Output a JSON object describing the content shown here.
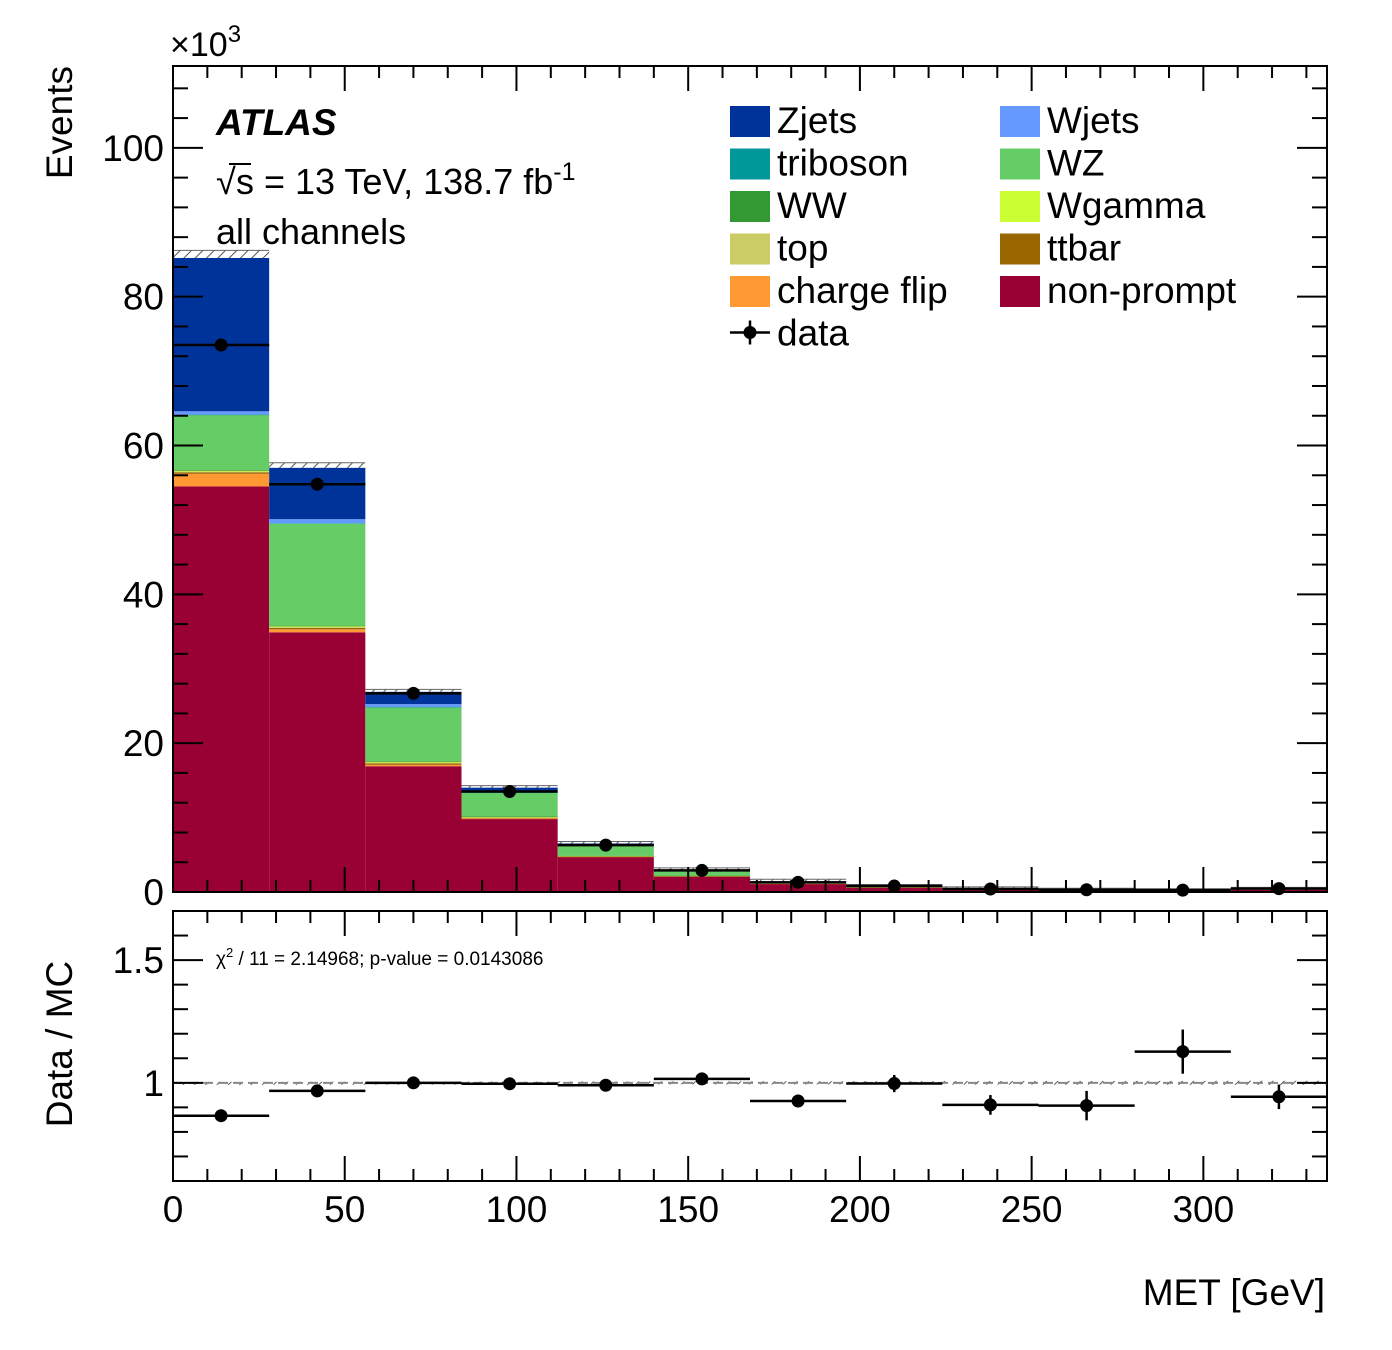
{
  "chart_data": [
    {
      "type": "bar",
      "stacked": true,
      "experiment": "ATLAS",
      "energy_prefix": "s = 13 TeV, 138.7 fb",
      "energy_superscript": "-1",
      "channel": "all channels",
      "ylabel": "Events",
      "yscale_prefix": "×10",
      "yscale_exp": "3",
      "ylim": [
        0,
        111
      ],
      "yticks": [
        0,
        20,
        40,
        60,
        80,
        100
      ],
      "xlim": [
        0,
        336
      ],
      "bin_edges": [
        0,
        28,
        56,
        84,
        112,
        140,
        168,
        196,
        224,
        252,
        280,
        308,
        336
      ],
      "series": [
        {
          "name": "non-prompt",
          "color": "#990033",
          "values": [
            54.5,
            34.9,
            16.9,
            9.8,
            4.7,
            2.1,
            1.1,
            0.6,
            0.35,
            0.2,
            0.15,
            0.3
          ]
        },
        {
          "name": "charge flip",
          "color": "#ff9933",
          "values": [
            1.7,
            0.4,
            0.2,
            0.1,
            0.05,
            0.03,
            0.02,
            0.01,
            0.0,
            0.0,
            0.0,
            0.0
          ]
        },
        {
          "name": "ttbar",
          "color": "#996600",
          "values": [
            0.2,
            0.2,
            0.2,
            0.1,
            0.05,
            0.03,
            0.02,
            0.01,
            0.0,
            0.0,
            0.0,
            0.0
          ]
        },
        {
          "name": "top",
          "color": "#cccc66",
          "values": [
            0.1,
            0.1,
            0.1,
            0.05,
            0.03,
            0.02,
            0.01,
            0.0,
            0.0,
            0.0,
            0.0,
            0.0
          ]
        },
        {
          "name": "Wgamma",
          "color": "#ccff33",
          "values": [
            0.1,
            0.1,
            0.1,
            0.05,
            0.02,
            0.01,
            0.0,
            0.0,
            0.0,
            0.0,
            0.0,
            0.0
          ]
        },
        {
          "name": "WW",
          "color": "#339933",
          "values": [
            0.1,
            0.1,
            0.1,
            0.05,
            0.02,
            0.01,
            0.0,
            0.0,
            0.0,
            0.0,
            0.0,
            0.0
          ]
        },
        {
          "name": "WZ",
          "color": "#66cc66",
          "values": [
            7.4,
            13.7,
            7.2,
            3.2,
            1.4,
            0.65,
            0.25,
            0.1,
            0.06,
            0.03,
            0.02,
            0.05
          ]
        },
        {
          "name": "triboson",
          "color": "#009999",
          "values": [
            0.05,
            0.05,
            0.05,
            0.02,
            0.01,
            0.01,
            0.0,
            0.0,
            0.0,
            0.0,
            0.0,
            0.0
          ]
        },
        {
          "name": "Wjets",
          "color": "#6699ff",
          "values": [
            0.45,
            0.55,
            0.4,
            0.2,
            0.1,
            0.05,
            0.02,
            0.01,
            0.0,
            0.0,
            0.0,
            0.0
          ]
        },
        {
          "name": "Zjets",
          "color": "#003399",
          "values": [
            20.6,
            6.9,
            1.65,
            0.45,
            0.14,
            0.07,
            0.03,
            0.01,
            0.01,
            0.0,
            0.0,
            0.0
          ]
        }
      ],
      "legend_order": [
        "Zjets",
        "Wjets",
        "triboson",
        "WZ",
        "WW",
        "Wgamma",
        "top",
        "ttbar",
        "charge flip",
        "non-prompt"
      ],
      "data": {
        "name": "data",
        "x": [
          14,
          42,
          70,
          98,
          126,
          154,
          182,
          210,
          238,
          266,
          294,
          322
        ],
        "values": [
          73.5,
          54.8,
          26.7,
          13.5,
          6.3,
          2.9,
          1.3,
          0.8,
          0.4,
          0.3,
          0.25,
          0.45
        ]
      },
      "legend_position": "top-right"
    },
    {
      "type": "scatter",
      "xlabel": "MET [GeV]",
      "ylabel": "Data / MC",
      "annotation_prefix": "χ",
      "annotation_sup": "2",
      "annotation_rest": " / 11 = 2.14968; p-value = 0.0143086",
      "ylim": [
        0.6,
        1.7
      ],
      "yticks": [
        1,
        1.5
      ],
      "ytick_labels": [
        "1",
        "1.5"
      ],
      "xlim": [
        0,
        336
      ],
      "xticks": [
        0,
        50,
        100,
        150,
        200,
        250,
        300
      ],
      "reference_line": 1,
      "points": [
        {
          "x": 14,
          "xerr": 14,
          "y": 0.866,
          "yerr": 0.006
        },
        {
          "x": 42,
          "xerr": 14,
          "y": 0.967,
          "yerr": 0.006
        },
        {
          "x": 70,
          "xerr": 14,
          "y": 1.0,
          "yerr": 0.008
        },
        {
          "x": 98,
          "xerr": 14,
          "y": 0.996,
          "yerr": 0.01
        },
        {
          "x": 126,
          "xerr": 14,
          "y": 0.99,
          "yerr": 0.012
        },
        {
          "x": 154,
          "xerr": 14,
          "y": 1.016,
          "yerr": 0.018
        },
        {
          "x": 182,
          "xerr": 14,
          "y": 0.926,
          "yerr": 0.025
        },
        {
          "x": 210,
          "xerr": 14,
          "y": 0.997,
          "yerr": 0.035
        },
        {
          "x": 238,
          "xerr": 14,
          "y": 0.91,
          "yerr": 0.04
        },
        {
          "x": 266,
          "xerr": 14,
          "y": 0.907,
          "yerr": 0.06
        },
        {
          "x": 294,
          "xerr": 14,
          "y": 1.127,
          "yerr": 0.09
        },
        {
          "x": 322,
          "xerr": 14,
          "y": 0.943,
          "yerr": 0.05
        }
      ]
    }
  ]
}
